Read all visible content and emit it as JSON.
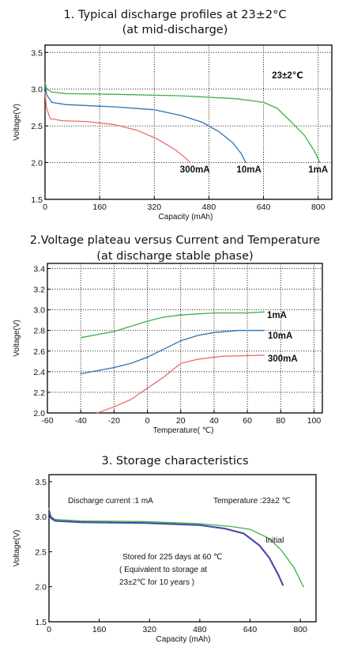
{
  "chart_data": [
    {
      "type": "line",
      "title": "1. Typical discharge profiles at 23±2°C",
      "subtitle": "(at mid-discharge)",
      "xlabel": "Capacity (mAh)",
      "ylabel": "Voltage(V)",
      "xlim": [
        0,
        840
      ],
      "ylim": [
        1.5,
        3.6
      ],
      "x_ticks": [
        "0",
        "160",
        "320",
        "480",
        "640",
        "800"
      ],
      "y_ticks": [
        "1.5",
        "2.0",
        "2.5",
        "3.0",
        "3.5"
      ],
      "grid": true,
      "annotations": [
        "23±2℃"
      ],
      "series": [
        {
          "name": "1mA",
          "color": "#3cb043",
          "points": [
            [
              0,
              3.09
            ],
            [
              5,
              3.0
            ],
            [
              20,
              2.96
            ],
            [
              60,
              2.94
            ],
            [
              200,
              2.93
            ],
            [
              400,
              2.91
            ],
            [
              560,
              2.87
            ],
            [
              640,
              2.82
            ],
            [
              680,
              2.74
            ],
            [
              720,
              2.56
            ],
            [
              760,
              2.37
            ],
            [
              790,
              2.15
            ],
            [
              805,
              2.0
            ]
          ]
        },
        {
          "name": "10mA",
          "color": "#2a73b8",
          "points": [
            [
              0,
              3.05
            ],
            [
              5,
              2.92
            ],
            [
              20,
              2.82
            ],
            [
              60,
              2.79
            ],
            [
              200,
              2.76
            ],
            [
              320,
              2.72
            ],
            [
              400,
              2.64
            ],
            [
              460,
              2.55
            ],
            [
              510,
              2.42
            ],
            [
              550,
              2.27
            ],
            [
              575,
              2.12
            ],
            [
              588,
              2.0
            ]
          ]
        },
        {
          "name": "300mA",
          "color": "#ef6b6b",
          "points": [
            [
              0,
              2.96
            ],
            [
              4,
              2.75
            ],
            [
              15,
              2.6
            ],
            [
              50,
              2.57
            ],
            [
              120,
              2.56
            ],
            [
              200,
              2.52
            ],
            [
              270,
              2.44
            ],
            [
              330,
              2.32
            ],
            [
              380,
              2.18
            ],
            [
              410,
              2.07
            ],
            [
              425,
              2.0
            ]
          ]
        }
      ]
    },
    {
      "type": "line",
      "title": "2.Voltage plateau versus Current and Temperature",
      "subtitle": "(at discharge stable phase)",
      "xlabel": "Temperature(  ℃)",
      "ylabel": "Voltage(V)",
      "xlim": [
        -60,
        105
      ],
      "ylim": [
        2.0,
        3.45
      ],
      "x_ticks": [
        "-60",
        "-40",
        "-20",
        "0",
        "20",
        "40",
        "60",
        "80",
        "100"
      ],
      "y_ticks": [
        "2.0",
        "2.2",
        "2.4",
        "2.6",
        "2.8",
        "3.0",
        "3.2",
        "3.4"
      ],
      "grid": true,
      "series": [
        {
          "name": "1mA",
          "color": "#3cb043",
          "points": [
            [
              -40,
              2.73
            ],
            [
              -20,
              2.79
            ],
            [
              -10,
              2.84
            ],
            [
              0,
              2.89
            ],
            [
              10,
              2.93
            ],
            [
              20,
              2.95
            ],
            [
              40,
              2.97
            ],
            [
              60,
              2.97
            ],
            [
              70,
              2.98
            ]
          ]
        },
        {
          "name": "10mA",
          "color": "#2a73b8",
          "points": [
            [
              -40,
              2.38
            ],
            [
              -20,
              2.44
            ],
            [
              -10,
              2.48
            ],
            [
              0,
              2.54
            ],
            [
              10,
              2.62
            ],
            [
              20,
              2.7
            ],
            [
              30,
              2.75
            ],
            [
              40,
              2.78
            ],
            [
              55,
              2.8
            ],
            [
              70,
              2.8
            ]
          ]
        },
        {
          "name": "300mA",
          "color": "#ef6b6b",
          "points": [
            [
              -30,
              2.0
            ],
            [
              -20,
              2.06
            ],
            [
              -10,
              2.13
            ],
            [
              0,
              2.24
            ],
            [
              10,
              2.35
            ],
            [
              20,
              2.48
            ],
            [
              30,
              2.52
            ],
            [
              45,
              2.55
            ],
            [
              70,
              2.56
            ]
          ]
        }
      ]
    },
    {
      "type": "line",
      "title": "3. Storage characteristics",
      "xlabel": "Capacity (mAh)",
      "ylabel": "Voltage(V)",
      "xlim": [
        0,
        850
      ],
      "ylim": [
        1.5,
        3.6
      ],
      "x_ticks": [
        "0",
        "160",
        "320",
        "480",
        "640",
        "800"
      ],
      "y_ticks": [
        "1.5",
        "2.0",
        "2.5",
        "3.0",
        "3.5"
      ],
      "grid": false,
      "annotations": [
        "Discharge current  :1  mA",
        "Temperature  :23±2 ℃",
        "Initial",
        "Stored for 225 days at 60    ℃",
        "( Equivalent to storage at",
        "23±2℃ for 10 years  )"
      ],
      "series": [
        {
          "name": "Initial",
          "color": "#3cb043",
          "points": [
            [
              0,
              3.12
            ],
            [
              6,
              3.0
            ],
            [
              20,
              2.96
            ],
            [
              100,
              2.94
            ],
            [
              300,
              2.93
            ],
            [
              480,
              2.9
            ],
            [
              580,
              2.86
            ],
            [
              640,
              2.82
            ],
            [
              700,
              2.69
            ],
            [
              740,
              2.52
            ],
            [
              780,
              2.27
            ],
            [
              810,
              2.0
            ]
          ]
        },
        {
          "name": "Stored",
          "color": "#4a4aa8",
          "points": [
            [
              0,
              3.08
            ],
            [
              6,
              2.98
            ],
            [
              20,
              2.94
            ],
            [
              100,
              2.92
            ],
            [
              300,
              2.91
            ],
            [
              480,
              2.88
            ],
            [
              560,
              2.83
            ],
            [
              620,
              2.76
            ],
            [
              670,
              2.59
            ],
            [
              700,
              2.42
            ],
            [
              730,
              2.17
            ],
            [
              745,
              2.02
            ]
          ]
        }
      ]
    }
  ],
  "labels": {
    "c1_series": [
      "1mA",
      "10mA",
      "300mA"
    ],
    "c2_series": [
      "1mA",
      "10mA",
      "300mA"
    ]
  }
}
